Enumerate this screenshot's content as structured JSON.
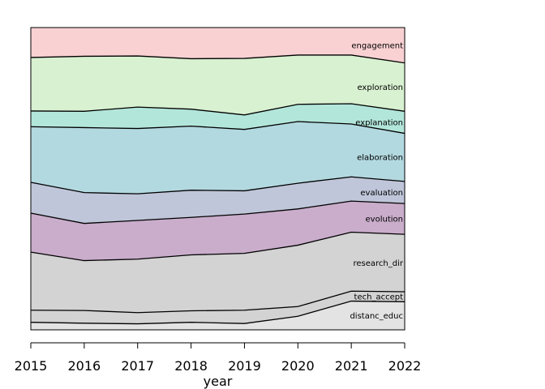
{
  "chart_data": {
    "type": "area",
    "stacked": true,
    "normalized": true,
    "title": "",
    "xlabel": "year",
    "ylabel": "",
    "x": [
      2015,
      2016,
      2017,
      2018,
      2019,
      2020,
      2021,
      2022
    ],
    "xlim": [
      2015,
      2022
    ],
    "ylim": [
      0,
      1
    ],
    "grid": false,
    "legend": "inline labels at right edge",
    "series": [
      {
        "name": "distanc_educ",
        "color": "#e3e3e3",
        "values": [
          0.025,
          0.022,
          0.02,
          0.025,
          0.021,
          0.045,
          0.095,
          0.093
        ]
      },
      {
        "name": "tech_accept",
        "color": "#d3d3d3",
        "values": [
          0.04,
          0.042,
          0.037,
          0.038,
          0.044,
          0.032,
          0.033,
          0.033
        ]
      },
      {
        "name": "research_dir",
        "color": "#d3d3d3",
        "values": [
          0.192,
          0.165,
          0.177,
          0.185,
          0.188,
          0.203,
          0.195,
          0.19
        ]
      },
      {
        "name": "evolution",
        "color": "#c9adcb",
        "values": [
          0.129,
          0.123,
          0.128,
          0.124,
          0.13,
          0.12,
          0.103,
          0.102
        ]
      },
      {
        "name": "evaluation",
        "color": "#bfc6d9",
        "values": [
          0.102,
          0.102,
          0.088,
          0.09,
          0.077,
          0.085,
          0.08,
          0.073
        ]
      },
      {
        "name": "elaboration",
        "color": "#b3d9e0",
        "values": [
          0.184,
          0.215,
          0.216,
          0.212,
          0.203,
          0.204,
          0.175,
          0.159
        ]
      },
      {
        "name": "explanation",
        "color": "#b3e6da",
        "values": [
          0.052,
          0.054,
          0.071,
          0.056,
          0.048,
          0.057,
          0.067,
          0.073
        ]
      },
      {
        "name": "exploration",
        "color": "#d8f1d1",
        "values": [
          0.177,
          0.182,
          0.169,
          0.167,
          0.187,
          0.163,
          0.161,
          0.16
        ]
      },
      {
        "name": "engagement",
        "color": "#f9d1d3",
        "values": [
          0.099,
          0.095,
          0.094,
          0.103,
          0.102,
          0.091,
          0.091,
          0.117
        ]
      }
    ]
  }
}
